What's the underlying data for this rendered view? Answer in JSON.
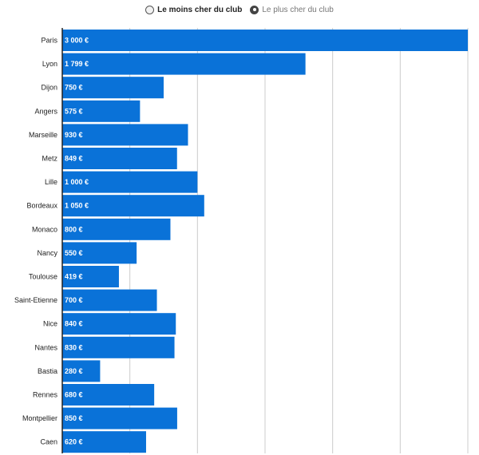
{
  "legend": {
    "option_min": "Le moins cher du club",
    "option_max": "Le plus cher du club",
    "selected": "max"
  },
  "colors": {
    "bar": "#0a72d8",
    "grid": "#cccccc",
    "axis": "#222222"
  },
  "chart_data": {
    "type": "bar",
    "orientation": "horizontal",
    "title": "",
    "xlabel": "",
    "ylabel": "",
    "xlim": [
      0,
      3000
    ],
    "grid": true,
    "categories": [
      "Paris",
      "Lyon",
      "Dijon",
      "Angers",
      "Marseille",
      "Metz",
      "Lille",
      "Bordeaux",
      "Monaco",
      "Nancy",
      "Toulouse",
      "Saint-Etienne",
      "Nice",
      "Nantes",
      "Bastia",
      "Rennes",
      "Montpellier",
      "Caen"
    ],
    "values": [
      3000,
      1799,
      750,
      575,
      930,
      849,
      1000,
      1050,
      800,
      550,
      419,
      700,
      840,
      830,
      280,
      680,
      850,
      620
    ],
    "value_labels": [
      "3 000 €",
      "1 799 €",
      "750 €",
      "575 €",
      "930 €",
      "849 €",
      "1 000 €",
      "1 050 €",
      "800 €",
      "550 €",
      "419 €",
      "700 €",
      "840 €",
      "830 €",
      "280 €",
      "680 €",
      "850 €",
      "620 €"
    ]
  }
}
